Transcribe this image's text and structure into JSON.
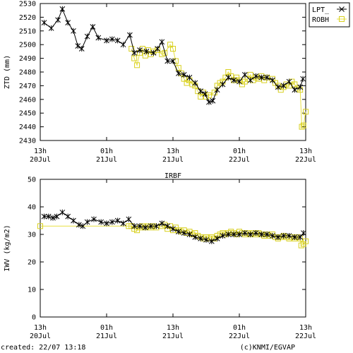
{
  "footer": {
    "created": "created: 22/07 13:18",
    "credit": "(c)KNMI/EGVAP"
  },
  "colors": {
    "lpt": "#000000",
    "robh": "#e8e040",
    "robh_edge": "#d8d020",
    "axes": "#000000"
  },
  "chart_data": [
    {
      "type": "line",
      "title": "",
      "xlabel": "",
      "ylabel": "ZTD (mm)",
      "xlim": [
        0,
        48
      ],
      "ylim": [
        2430,
        2530
      ],
      "yticks": [
        2430,
        2440,
        2450,
        2460,
        2470,
        2480,
        2490,
        2500,
        2510,
        2520,
        2530
      ],
      "xticks": [
        {
          "x": 0,
          "line1": "13h",
          "line2": "20Jul"
        },
        {
          "x": 12,
          "line1": "01h",
          "line2": "21Jul"
        },
        {
          "x": 24,
          "line1": "13h",
          "line2": "21Jul"
        },
        {
          "x": 36,
          "line1": "01h",
          "line2": "22Jul"
        },
        {
          "x": 48,
          "line1": "13h",
          "line2": "22Jul"
        }
      ],
      "legend": "top-right",
      "series": [
        {
          "name": "LPT_",
          "marker": "x",
          "points": [
            [
              0.7,
              2516
            ],
            [
              2,
              2512
            ],
            [
              3.2,
              2518
            ],
            [
              4,
              2526
            ],
            [
              5,
              2516
            ],
            [
              6,
              2510
            ],
            [
              6.8,
              2499
            ],
            [
              7.5,
              2497
            ],
            [
              8.5,
              2506
            ],
            [
              9.5,
              2513
            ],
            [
              10.5,
              2505
            ],
            [
              12,
              2503
            ],
            [
              13,
              2504
            ],
            [
              14,
              2503
            ],
            [
              15,
              2500
            ],
            [
              16.2,
              2507
            ],
            [
              17,
              2494
            ],
            [
              18,
              2496
            ],
            [
              19.2,
              2495
            ],
            [
              20.5,
              2494
            ],
            [
              21.2,
              2497
            ],
            [
              22,
              2502
            ],
            [
              23,
              2488
            ],
            [
              24,
              2488
            ],
            [
              25,
              2479
            ],
            [
              26,
              2478
            ],
            [
              27,
              2476
            ],
            [
              28,
              2472
            ],
            [
              29,
              2466
            ],
            [
              29.8,
              2464
            ],
            [
              30.5,
              2458
            ],
            [
              31.2,
              2459
            ],
            [
              32,
              2467
            ],
            [
              33,
              2471
            ],
            [
              34,
              2476
            ],
            [
              35,
              2474
            ],
            [
              36,
              2473
            ],
            [
              37,
              2478
            ],
            [
              38,
              2474
            ],
            [
              39,
              2477
            ],
            [
              40,
              2476
            ],
            [
              41,
              2476
            ],
            [
              42,
              2474
            ],
            [
              43,
              2469
            ],
            [
              44,
              2470
            ],
            [
              45,
              2473
            ],
            [
              46,
              2467
            ],
            [
              47,
              2469
            ],
            [
              47.5,
              2475
            ]
          ]
        },
        {
          "name": "ROBH",
          "marker": "square",
          "points": [
            [
              16.5,
              2497
            ],
            [
              17,
              2490
            ],
            [
              17.5,
              2485
            ],
            [
              18,
              2494
            ],
            [
              18.5,
              2497
            ],
            [
              19,
              2492
            ],
            [
              19.5,
              2496
            ],
            [
              20,
              2493
            ],
            [
              20.5,
              2495
            ],
            [
              21.2,
              2496
            ],
            [
              22,
              2493
            ],
            [
              22.5,
              2494
            ],
            [
              23.5,
              2500
            ],
            [
              24,
              2497
            ],
            [
              24.5,
              2488
            ],
            [
              25,
              2483
            ],
            [
              25.5,
              2479
            ],
            [
              26,
              2475
            ],
            [
              26.5,
              2472
            ],
            [
              27,
              2474
            ],
            [
              27.5,
              2471
            ],
            [
              28,
              2470
            ],
            [
              28.5,
              2466
            ],
            [
              29,
              2462
            ],
            [
              29.5,
              2465
            ],
            [
              30,
              2462
            ],
            [
              30.5,
              2463
            ],
            [
              31.5,
              2465
            ],
            [
              32,
              2470
            ],
            [
              32.5,
              2472
            ],
            [
              33,
              2473
            ],
            [
              33.5,
              2476
            ],
            [
              34,
              2480
            ],
            [
              34.5,
              2477
            ],
            [
              35,
              2474
            ],
            [
              35.5,
              2476
            ],
            [
              36,
              2474
            ],
            [
              36.5,
              2471
            ],
            [
              37,
              2473
            ],
            [
              37.5,
              2475
            ],
            [
              38,
              2478
            ],
            [
              38.5,
              2474
            ],
            [
              39,
              2476
            ],
            [
              39.5,
              2475
            ],
            [
              40,
              2477
            ],
            [
              40.5,
              2474
            ],
            [
              41,
              2476
            ],
            [
              42,
              2475
            ],
            [
              42.5,
              2472
            ],
            [
              43,
              2470
            ],
            [
              43.5,
              2467
            ],
            [
              44,
              2469
            ],
            [
              44.5,
              2471
            ],
            [
              45,
              2470
            ],
            [
              45.5,
              2473
            ],
            [
              46,
              2471
            ],
            [
              46.5,
              2468
            ],
            [
              47,
              2467
            ],
            [
              47.3,
              2440
            ],
            [
              47.6,
              2441
            ],
            [
              48,
              2451
            ]
          ]
        }
      ]
    },
    {
      "type": "line",
      "title": "IRBF",
      "xlabel": "",
      "ylabel": "IWV (kg/m2)",
      "xlim": [
        0,
        48
      ],
      "ylim": [
        0,
        50
      ],
      "yticks": [
        0,
        10,
        20,
        30,
        40,
        50
      ],
      "xticks": [
        {
          "x": 0,
          "line1": "13h",
          "line2": "20Jul"
        },
        {
          "x": 12,
          "line1": "01h",
          "line2": "21Jul"
        },
        {
          "x": 24,
          "line1": "13h",
          "line2": "21Jul"
        },
        {
          "x": 36,
          "line1": "01h",
          "line2": "22Jul"
        },
        {
          "x": 48,
          "line1": "13h",
          "line2": "22Jul"
        }
      ],
      "series": [
        {
          "name": "LPT_",
          "marker": "x",
          "points": [
            [
              0.7,
              36.5
            ],
            [
              1.5,
              36.5
            ],
            [
              2.3,
              36
            ],
            [
              3,
              36.5
            ],
            [
              4,
              38
            ],
            [
              5,
              36.5
            ],
            [
              6,
              35
            ],
            [
              7,
              33.5
            ],
            [
              7.7,
              33
            ],
            [
              8.5,
              34.5
            ],
            [
              9.7,
              35.5
            ],
            [
              11,
              34.5
            ],
            [
              12,
              34
            ],
            [
              13,
              34.5
            ],
            [
              14,
              35
            ],
            [
              15,
              34
            ],
            [
              16,
              35.5
            ],
            [
              17,
              33
            ],
            [
              18,
              33
            ],
            [
              19,
              32.5
            ],
            [
              20,
              33
            ],
            [
              21,
              33
            ],
            [
              22,
              34
            ],
            [
              23,
              33
            ],
            [
              24,
              32
            ],
            [
              25,
              31
            ],
            [
              26,
              30.5
            ],
            [
              27,
              30
            ],
            [
              28,
              29
            ],
            [
              29,
              28.5
            ],
            [
              30,
              28
            ],
            [
              31,
              27.5
            ],
            [
              32,
              28.5
            ],
            [
              33,
              29.5
            ],
            [
              34,
              30
            ],
            [
              35,
              30
            ],
            [
              36,
              30
            ],
            [
              37,
              30.5
            ],
            [
              38,
              30
            ],
            [
              39,
              30.5
            ],
            [
              40,
              30
            ],
            [
              41,
              30
            ],
            [
              42,
              29.5
            ],
            [
              43,
              29
            ],
            [
              44,
              29.5
            ],
            [
              45,
              29.5
            ],
            [
              46,
              29
            ],
            [
              47,
              29
            ],
            [
              47.6,
              30.5
            ]
          ]
        },
        {
          "name": "ROBH",
          "marker": "square",
          "points": [
            [
              0,
              33
            ],
            [
              16,
              33
            ],
            [
              16.5,
              33
            ],
            [
              17,
              32
            ],
            [
              17.5,
              31.5
            ],
            [
              18,
              32.5
            ],
            [
              18.5,
              33
            ],
            [
              19,
              32.5
            ],
            [
              19.5,
              33
            ],
            [
              20,
              32.5
            ],
            [
              20.5,
              33
            ],
            [
              21,
              32.5
            ],
            [
              22,
              33
            ],
            [
              22.5,
              33.5
            ],
            [
              23,
              32
            ],
            [
              23.5,
              33
            ],
            [
              24,
              31.5
            ],
            [
              24.5,
              32.5
            ],
            [
              25,
              31.5
            ],
            [
              25.5,
              31
            ],
            [
              26,
              31.5
            ],
            [
              26.5,
              30.5
            ],
            [
              27,
              31
            ],
            [
              27.5,
              30
            ],
            [
              28,
              30.5
            ],
            [
              28.5,
              29.5
            ],
            [
              29,
              29
            ],
            [
              29.5,
              28.5
            ],
            [
              30,
              29
            ],
            [
              30.5,
              28.5
            ],
            [
              31,
              29
            ],
            [
              31.5,
              28.5
            ],
            [
              32,
              29.5
            ],
            [
              32.5,
              30
            ],
            [
              33,
              30.5
            ],
            [
              33.5,
              30
            ],
            [
              34,
              30.5
            ],
            [
              34.5,
              31
            ],
            [
              35,
              30.5
            ],
            [
              35.5,
              30
            ],
            [
              36,
              31
            ],
            [
              36.5,
              30.5
            ],
            [
              37,
              30
            ],
            [
              37.5,
              30.5
            ],
            [
              38,
              30
            ],
            [
              38.5,
              30.5
            ],
            [
              39,
              30
            ],
            [
              39.5,
              30.5
            ],
            [
              40,
              30
            ],
            [
              40.5,
              29.5
            ],
            [
              41,
              30
            ],
            [
              41.5,
              29.5
            ],
            [
              42,
              30
            ],
            [
              42.5,
              29
            ],
            [
              43,
              28.5
            ],
            [
              43.5,
              29
            ],
            [
              44,
              29.5
            ],
            [
              44.5,
              29
            ],
            [
              45,
              28.5
            ],
            [
              45.5,
              29
            ],
            [
              46,
              28.5
            ],
            [
              46.5,
              29
            ],
            [
              47,
              28.5
            ],
            [
              47.2,
              26
            ],
            [
              47.6,
              26.5
            ],
            [
              48,
              27.5
            ]
          ]
        }
      ]
    }
  ]
}
